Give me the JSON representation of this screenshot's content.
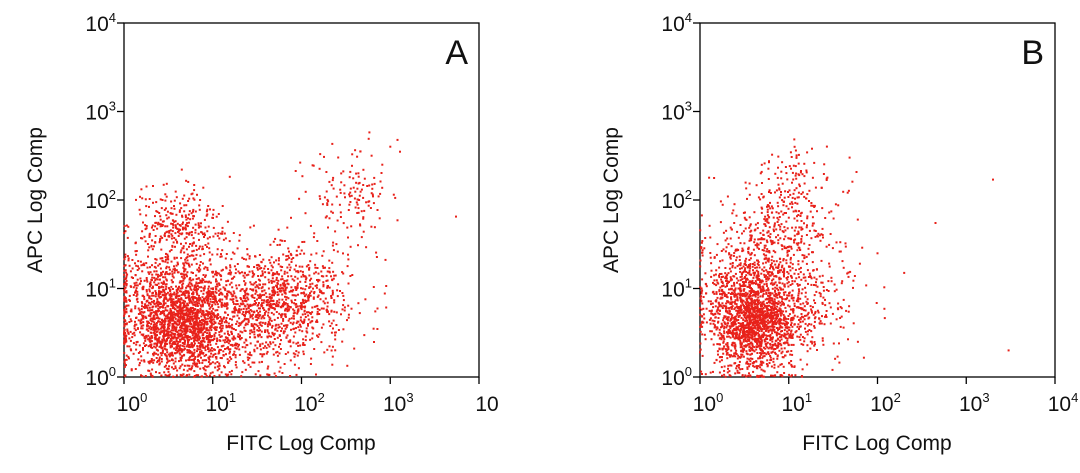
{
  "chart_data": [
    {
      "type": "scatter",
      "panel_label": "A",
      "xlabel": "FITC Log Comp",
      "ylabel": "APC Log Comp",
      "x_scale": "log",
      "y_scale": "log",
      "xlim": [
        1,
        10000
      ],
      "ylim": [
        1,
        10000
      ],
      "x_ticks": [
        {
          "base": "10",
          "exp": "0"
        },
        {
          "base": "10",
          "exp": "1"
        },
        {
          "base": "10",
          "exp": "2"
        },
        {
          "base": "10",
          "exp": "3"
        },
        {
          "base": "10",
          "exp": ""
        }
      ],
      "y_ticks": [
        {
          "base": "10",
          "exp": "0"
        },
        {
          "base": "10",
          "exp": "1"
        },
        {
          "base": "10",
          "exp": "2"
        },
        {
          "base": "10",
          "exp": "3"
        },
        {
          "base": "10",
          "exp": "4"
        }
      ],
      "grid": false,
      "point_color": "#e8211a",
      "clusters": [
        {
          "center": [
            4.5,
            4.0
          ],
          "spread": [
            0.32,
            0.3
          ],
          "count": 1700
        },
        {
          "center": [
            3.2,
            10.0
          ],
          "spread": [
            0.35,
            0.3
          ],
          "count": 450
        },
        {
          "center": [
            4.5,
            50.0
          ],
          "spread": [
            0.25,
            0.2
          ],
          "count": 280
        },
        {
          "center": [
            60.0,
            8.0
          ],
          "spread": [
            0.4,
            0.3
          ],
          "count": 850
        },
        {
          "center": [
            25.0,
            3.5
          ],
          "spread": [
            0.45,
            0.28
          ],
          "count": 400
        },
        {
          "center": [
            400.0,
            110.0
          ],
          "spread": [
            0.28,
            0.28
          ],
          "count": 140
        }
      ],
      "outliers": [
        [
          5500,
          65
        ],
        [
          1000,
          400
        ],
        [
          280,
          200
        ]
      ]
    },
    {
      "type": "scatter",
      "panel_label": "B",
      "xlabel": "FITC Log Comp",
      "ylabel": "APC Log Comp",
      "x_scale": "log",
      "y_scale": "log",
      "xlim": [
        1,
        10000
      ],
      "ylim": [
        1,
        10000
      ],
      "x_ticks": [
        {
          "base": "10",
          "exp": "0"
        },
        {
          "base": "10",
          "exp": "1"
        },
        {
          "base": "10",
          "exp": "2"
        },
        {
          "base": "10",
          "exp": "3"
        },
        {
          "base": "10",
          "exp": "4"
        }
      ],
      "y_ticks": [
        {
          "base": "10",
          "exp": "0"
        },
        {
          "base": "10",
          "exp": "1"
        },
        {
          "base": "10",
          "exp": "2"
        },
        {
          "base": "10",
          "exp": "3"
        },
        {
          "base": "10",
          "exp": "4"
        }
      ],
      "grid": false,
      "point_color": "#e8211a",
      "clusters": [
        {
          "center": [
            4.0,
            4.0
          ],
          "spread": [
            0.25,
            0.28
          ],
          "count": 1500
        },
        {
          "center": [
            3.5,
            12.0
          ],
          "spread": [
            0.3,
            0.3
          ],
          "count": 400
        },
        {
          "center": [
            7.0,
            40.0
          ],
          "spread": [
            0.3,
            0.3
          ],
          "count": 320
        },
        {
          "center": [
            12.0,
            150.0
          ],
          "spread": [
            0.25,
            0.22
          ],
          "count": 120
        },
        {
          "center": [
            12.0,
            6.0
          ],
          "spread": [
            0.35,
            0.35
          ],
          "count": 350
        }
      ],
      "outliers": [
        [
          2000,
          170
        ],
        [
          450,
          55
        ],
        [
          3000,
          2
        ],
        [
          200,
          15
        ],
        [
          100,
          25
        ],
        [
          60,
          60
        ]
      ]
    }
  ]
}
